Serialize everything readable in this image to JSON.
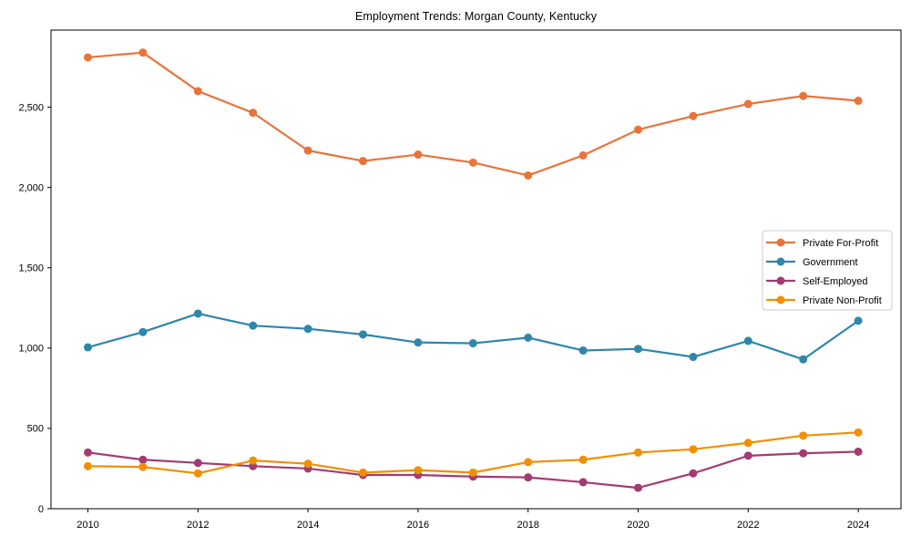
{
  "chart_data": {
    "type": "line",
    "title": "Employment Trends: Morgan County, Kentucky",
    "xlabel": "",
    "ylabel": "",
    "x": [
      2010,
      2011,
      2012,
      2013,
      2014,
      2015,
      2016,
      2017,
      2018,
      2019,
      2020,
      2021,
      2022,
      2023,
      2024
    ],
    "series": [
      {
        "name": "Private For-Profit",
        "color": "#E8743B",
        "values": [
          2810,
          2840,
          2600,
          2465,
          2230,
          2165,
          2205,
          2155,
          2075,
          2200,
          2360,
          2445,
          2520,
          2570,
          2540
        ]
      },
      {
        "name": "Government",
        "color": "#2E86AB",
        "values": [
          1005,
          1100,
          1215,
          1140,
          1120,
          1085,
          1035,
          1030,
          1065,
          985,
          995,
          945,
          1045,
          930,
          1170
        ]
      },
      {
        "name": "Self-Employed",
        "color": "#A23B72",
        "values": [
          350,
          305,
          285,
          265,
          250,
          210,
          210,
          200,
          195,
          165,
          130,
          220,
          330,
          345,
          355
        ]
      },
      {
        "name": "Private Non-Profit",
        "color": "#F18F01",
        "values": [
          265,
          260,
          220,
          300,
          280,
          225,
          240,
          225,
          290,
          305,
          350,
          370,
          410,
          455,
          475
        ]
      }
    ],
    "xticks": [
      2010,
      2012,
      2014,
      2016,
      2018,
      2020,
      2022,
      2024
    ],
    "yticks": [
      0,
      500,
      1000,
      1500,
      2000,
      2500
    ],
    "ytick_labels": [
      "0",
      "500",
      "1,000",
      "1,500",
      "2,000",
      "2,500"
    ],
    "ylim": [
      0,
      2980
    ],
    "xlim": [
      2009.3,
      2024.7
    ],
    "grid": false,
    "marker": "circle",
    "legend_position": "center right",
    "frame": "full-box"
  }
}
